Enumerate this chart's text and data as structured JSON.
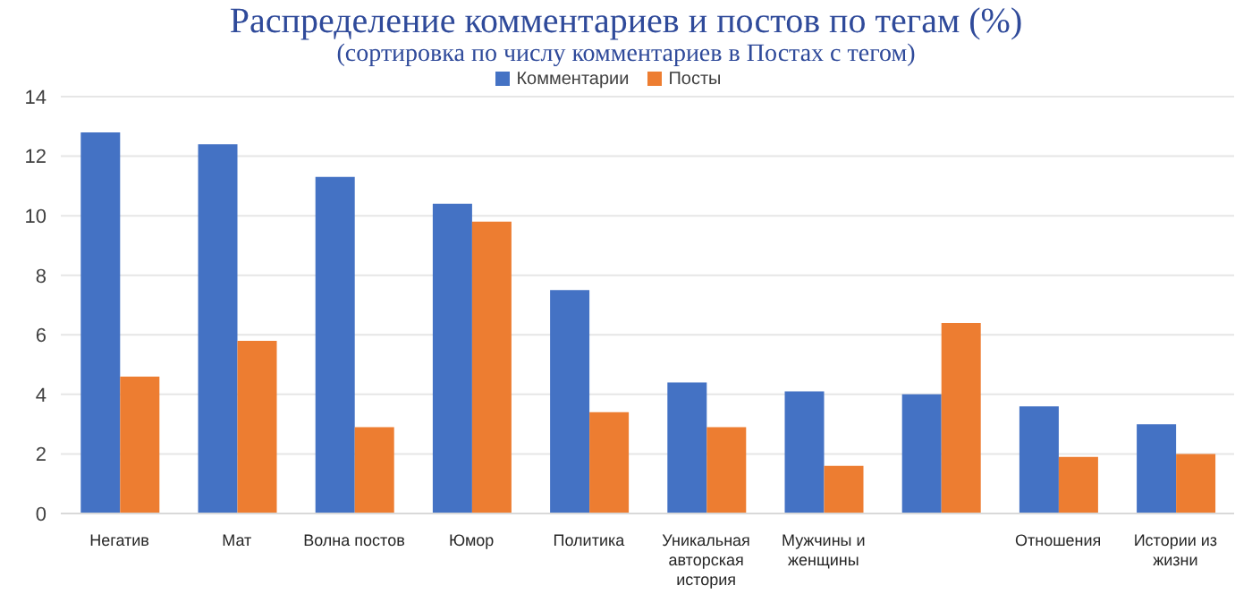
{
  "chart_data": {
    "type": "bar",
    "title": "Распределение комментариев и постов по тегам (%)",
    "subtitle": "(сортировка по числу комментариев в Постах с тегом)",
    "categories": [
      "Негатив",
      "Мат",
      "Волна постов",
      "Юмор",
      "Политика",
      "Уникальная авторская история",
      "Мужчины и женщины",
      null,
      "Отношения",
      "Истории из жизни"
    ],
    "series": [
      {
        "name": "Комментарии",
        "color": "#4472c4",
        "values": [
          12.8,
          12.4,
          11.3,
          10.4,
          7.5,
          4.4,
          4.1,
          4.0,
          3.6,
          3.0
        ]
      },
      {
        "name": "Посты",
        "color": "#ed7d31",
        "values": [
          4.6,
          5.8,
          2.9,
          9.8,
          3.4,
          2.9,
          1.6,
          6.4,
          1.9,
          2.0
        ]
      }
    ],
    "ylim": [
      0,
      14
    ],
    "yticks": [
      0,
      2,
      4,
      6,
      8,
      10,
      12,
      14
    ],
    "grid": "y",
    "legend": "top"
  }
}
